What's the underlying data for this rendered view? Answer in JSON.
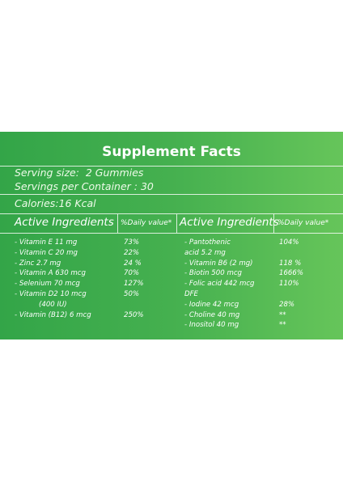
{
  "title": "Supplement Facts",
  "serving_size": "Serving size:  2 Gummies",
  "servings_per_container": "Servings per Container : 30",
  "calories": "Calories:16 Kcal",
  "columns": [
    {
      "header": "Active Ingredients",
      "dv_header": "%Daily value*",
      "items": [
        {
          "name": [
            "- Vitamin E 11 mg"
          ],
          "dv": "73%"
        },
        {
          "name": [
            "- Vitamin C 20 mg"
          ],
          "dv": "22%"
        },
        {
          "name": [
            "- Zinc 2.7 mg"
          ],
          "dv": "24 %"
        },
        {
          "name": [
            "- Vitamin A 630 mcg"
          ],
          "dv": "70%"
        },
        {
          "name": [
            "- Selenium 70 mcg"
          ],
          "dv": "127%"
        },
        {
          "name": [
            "- Vitamin D2 10 mcg",
            "(400 IU)"
          ],
          "dv": "50%"
        },
        {
          "name": [
            "- Vitamin (B12) 6 mcg"
          ],
          "dv": "250%"
        }
      ]
    },
    {
      "header": "Active Ingredients",
      "dv_header": "%Daily value*",
      "items": [
        {
          "name": [
            "- Pantothenic",
            "acid 5.2 mg"
          ],
          "dv": "104%"
        },
        {
          "name": [
            "- Vitamin B6 (2 mg)"
          ],
          "dv": "118 %"
        },
        {
          "name": [
            "- Biotin 500 mcg"
          ],
          "dv": "1666%"
        },
        {
          "name": [
            "- Folic acid 442 mcg",
            "DFE"
          ],
          "dv": "110%"
        },
        {
          "name": [
            "- Iodine 42 mcg"
          ],
          "dv": "28%"
        },
        {
          "name": [
            "- Choline  40 mg"
          ],
          "dv": "**"
        },
        {
          "name": [
            "- Inositol 40 mg"
          ],
          "dv": "**"
        }
      ]
    }
  ]
}
